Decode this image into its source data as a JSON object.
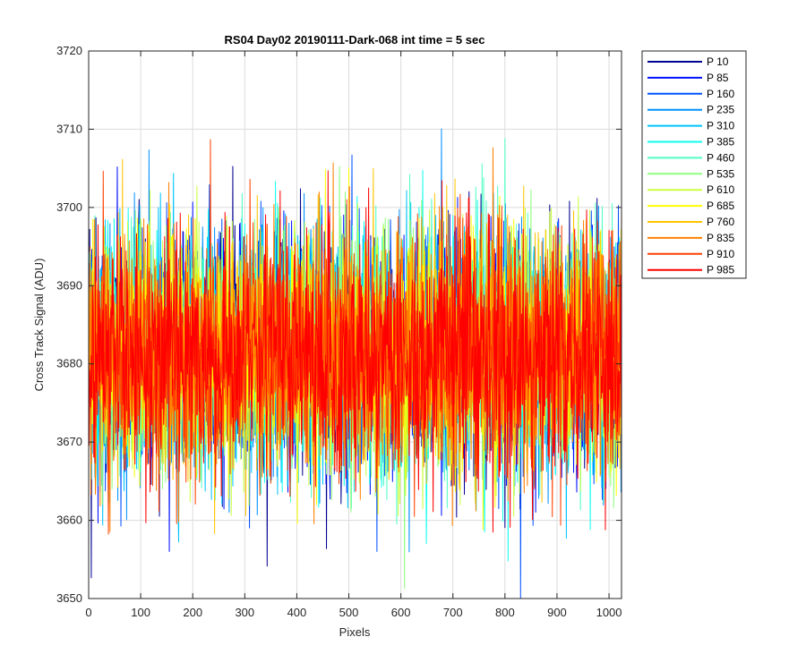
{
  "chart_data": {
    "type": "line",
    "title": "RS04 Day02 20190111-Dark-068 int time = 5 sec",
    "xlabel": "Pixels",
    "ylabel": "Cross Track Signal (ADU)",
    "xlim": [
      0,
      1024
    ],
    "ylim": [
      3650,
      3720
    ],
    "xticks": [
      0,
      100,
      200,
      300,
      400,
      500,
      600,
      700,
      800,
      900,
      1000
    ],
    "yticks": [
      3650,
      3660,
      3670,
      3680,
      3690,
      3700,
      3710,
      3720
    ],
    "xtick_labels": [
      "0",
      "100",
      "200",
      "300",
      "400",
      "500",
      "600",
      "700",
      "800",
      "900",
      "1000"
    ],
    "ytick_labels": [
      "3650",
      "3660",
      "3670",
      "3680",
      "3690",
      "3700",
      "3710",
      "3720"
    ],
    "grid": true,
    "legend_position": "outside-top-right",
    "noise": {
      "mean": 3681.5,
      "std": 7.5,
      "min": 3650,
      "max": 3712
    },
    "series": [
      {
        "name": "P 10",
        "color": "#00008f"
      },
      {
        "name": "P 85",
        "color": "#0010ff"
      },
      {
        "name": "P 160",
        "color": "#0050ff"
      },
      {
        "name": "P 235",
        "color": "#0090ff"
      },
      {
        "name": "P 310",
        "color": "#00c4ff"
      },
      {
        "name": "P 385",
        "color": "#10ffee"
      },
      {
        "name": "P 460",
        "color": "#50ffc4"
      },
      {
        "name": "P 535",
        "color": "#90ff80"
      },
      {
        "name": "P 610",
        "color": "#ccff40"
      },
      {
        "name": "P 685",
        "color": "#ffff00"
      },
      {
        "name": "P 760",
        "color": "#ffc400"
      },
      {
        "name": "P 835",
        "color": "#ff8000"
      },
      {
        "name": "P 910",
        "color": "#ff4000"
      },
      {
        "name": "P 985",
        "color": "#ff0000"
      }
    ]
  }
}
